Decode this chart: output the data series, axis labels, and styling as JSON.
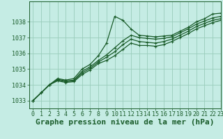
{
  "bg_color": "#c5ece4",
  "grid_color": "#99ccbb",
  "line_color": "#1a5c2a",
  "xlabel": "Graphe pression niveau de la mer (hPa)",
  "xlim": [
    -0.5,
    23
  ],
  "ylim": [
    1032.5,
    1039.3
  ],
  "yticks": [
    1033,
    1034,
    1035,
    1036,
    1037,
    1038
  ],
  "xticks": [
    0,
    1,
    2,
    3,
    4,
    5,
    6,
    7,
    8,
    9,
    10,
    11,
    12,
    13,
    14,
    15,
    16,
    17,
    18,
    19,
    20,
    21,
    22,
    23
  ],
  "series": [
    [
      1033.0,
      1033.5,
      1034.0,
      1034.4,
      1034.3,
      1034.4,
      1035.0,
      1035.3,
      1035.85,
      1036.65,
      1038.35,
      1038.1,
      1037.55,
      1037.15,
      1037.1,
      1037.05,
      1037.1,
      1037.15,
      1037.4,
      1037.65,
      1038.0,
      1038.2,
      1038.5,
      1038.55
    ],
    [
      1033.0,
      1033.5,
      1034.0,
      1034.35,
      1034.25,
      1034.3,
      1034.85,
      1035.15,
      1035.55,
      1035.9,
      1036.35,
      1036.8,
      1037.15,
      1037.0,
      1036.95,
      1036.9,
      1036.95,
      1037.05,
      1037.3,
      1037.55,
      1037.85,
      1038.05,
      1038.25,
      1038.35
    ],
    [
      1033.0,
      1033.5,
      1034.0,
      1034.3,
      1034.2,
      1034.25,
      1034.75,
      1035.05,
      1035.45,
      1035.75,
      1036.1,
      1036.55,
      1036.9,
      1036.75,
      1036.7,
      1036.65,
      1036.75,
      1036.9,
      1037.15,
      1037.4,
      1037.7,
      1037.9,
      1038.1,
      1038.2
    ],
    [
      1033.0,
      1033.5,
      1034.0,
      1034.25,
      1034.15,
      1034.2,
      1034.65,
      1034.95,
      1035.35,
      1035.55,
      1035.85,
      1036.25,
      1036.65,
      1036.5,
      1036.5,
      1036.45,
      1036.55,
      1036.75,
      1037.0,
      1037.25,
      1037.55,
      1037.75,
      1037.95,
      1038.1
    ]
  ],
  "title_fontsize": 8,
  "tick_fontsize": 6
}
